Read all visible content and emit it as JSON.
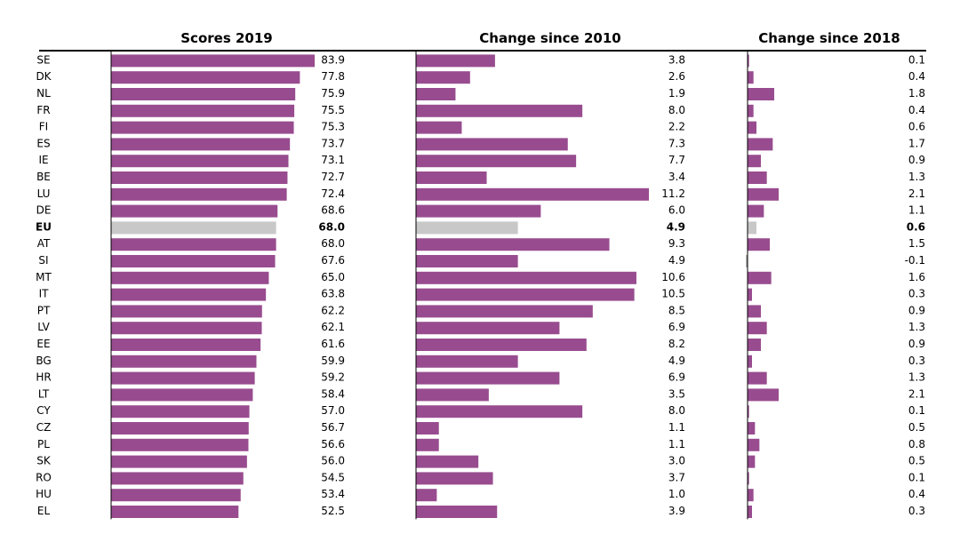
{
  "chart_data": {
    "type": "bar",
    "orientation": "horizontal",
    "colors": {
      "bar": "#984c8f",
      "highlight": "#c8c8c8",
      "axis": "#000000"
    },
    "highlight_category": "EU",
    "categories": [
      "SE",
      "DK",
      "NL",
      "FR",
      "FI",
      "ES",
      "IE",
      "BE",
      "LU",
      "DE",
      "EU",
      "AT",
      "SI",
      "MT",
      "IT",
      "PT",
      "LV",
      "EE",
      "BG",
      "HR",
      "LT",
      "CY",
      "CZ",
      "PL",
      "SK",
      "RO",
      "HU",
      "EL"
    ],
    "series": [
      {
        "name": "Scores 2019",
        "values": [
          83.9,
          77.8,
          75.9,
          75.5,
          75.3,
          73.7,
          73.1,
          72.7,
          72.4,
          68.6,
          68.0,
          68.0,
          67.6,
          65.0,
          63.8,
          62.2,
          62.1,
          61.6,
          59.9,
          59.2,
          58.4,
          57.0,
          56.7,
          56.6,
          56.0,
          54.5,
          53.4,
          52.5
        ],
        "labels": [
          "83.9",
          "77.8",
          "75.9",
          "75.5",
          "75.3",
          "73.7",
          "73.1",
          "72.7",
          "72.4",
          "68.6",
          "68.0",
          "68.0",
          "67.6",
          "65.0",
          "63.8",
          "62.2",
          "62.1",
          "61.6",
          "59.9",
          "59.2",
          "58.4",
          "57.0",
          "56.7",
          "56.6",
          "56.0",
          "54.5",
          "53.4",
          "52.5"
        ],
        "xlim": [
          0,
          83.9
        ]
      },
      {
        "name": "Change since 2010",
        "values": [
          3.8,
          2.6,
          1.9,
          8.0,
          2.2,
          7.3,
          7.7,
          3.4,
          11.2,
          6.0,
          4.9,
          9.3,
          4.9,
          10.6,
          10.5,
          8.5,
          6.9,
          8.2,
          4.9,
          6.9,
          3.5,
          8.0,
          1.1,
          1.1,
          3.0,
          3.7,
          1.0,
          3.9
        ],
        "labels": [
          "3.8",
          "2.6",
          "1.9",
          "8.0",
          "2.2",
          "7.3",
          "7.7",
          "3.4",
          "11.2",
          "6.0",
          "4.9",
          "9.3",
          "4.9",
          "10.6",
          "10.5",
          "8.5",
          "6.9",
          "8.2",
          "4.9",
          "6.9",
          "3.5",
          "8.0",
          "1.1",
          "1.1",
          "3.0",
          "3.7",
          "1.0",
          "3.9"
        ],
        "xlim": [
          0,
          11.2
        ]
      },
      {
        "name": "Change since 2018",
        "values": [
          0.1,
          0.4,
          1.8,
          0.4,
          0.6,
          1.7,
          0.9,
          1.3,
          2.1,
          1.1,
          0.6,
          1.5,
          -0.1,
          1.6,
          0.3,
          0.9,
          1.3,
          0.9,
          0.3,
          1.3,
          2.1,
          0.1,
          0.5,
          0.8,
          0.5,
          0.1,
          0.4,
          0.3
        ],
        "labels": [
          "0.1",
          "0.4",
          "1.8",
          "0.4",
          "0.6",
          "1.7",
          "0.9",
          "1.3",
          "2.1",
          "1.1",
          "0.6",
          "1.5",
          "-0.1",
          "1.6",
          "0.3",
          "0.9",
          "1.3",
          "0.9",
          "0.3",
          "1.3",
          "2.1",
          "0.1",
          "0.5",
          "0.8",
          "0.5",
          "0.1",
          "0.4",
          "0.3"
        ],
        "xlim": [
          0,
          2.1
        ]
      }
    ]
  }
}
